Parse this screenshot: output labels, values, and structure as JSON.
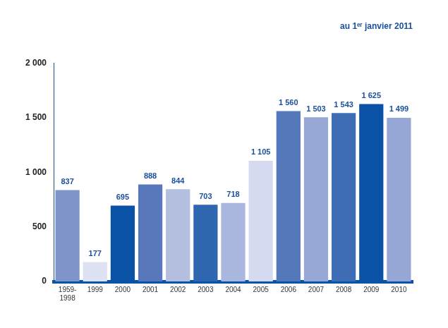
{
  "chart_data": {
    "type": "bar",
    "subtitle": "au 1ᵉʳ janvier 2011",
    "categories": [
      "1959-1998",
      "1999",
      "2000",
      "2001",
      "2002",
      "2003",
      "2004",
      "2005",
      "2006",
      "2007",
      "2008",
      "2009",
      "2010"
    ],
    "values": [
      837,
      177,
      695,
      888,
      844,
      703,
      718,
      1105,
      1560,
      1503,
      1543,
      1625,
      1499
    ],
    "value_labels": [
      "837",
      "177",
      "695",
      "888",
      "844",
      "703",
      "718",
      "1 105",
      "1 560",
      "1 503",
      "1 543",
      "1 625",
      "1 499"
    ],
    "colors": [
      "#7f95c9",
      "#dde2f2",
      "#0a52a5",
      "#5878bb",
      "#b4bfe0",
      "#2e66b0",
      "#a9b6dd",
      "#d5daf0",
      "#5578bb",
      "#97a8d6",
      "#3f6db5",
      "#0a52a5",
      "#96a7d6"
    ],
    "ylim": [
      0,
      2000
    ],
    "yticks": [
      0,
      500,
      {
        "value": 1000,
        "label": "1 000"
      },
      {
        "value": 1500,
        "label": "1 500"
      },
      {
        "value": 2000,
        "label": "2 000"
      }
    ],
    "grid": false,
    "data_labels": true
  }
}
